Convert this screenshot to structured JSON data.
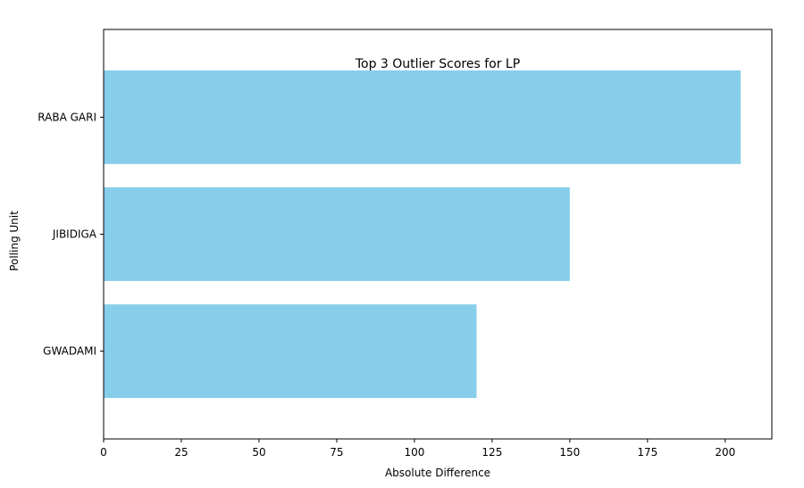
{
  "chart_data": {
    "type": "bar",
    "orientation": "horizontal",
    "title": "Top 3 Outlier Scores for LP",
    "xlabel": "Absolute Difference",
    "ylabel": "Polling Unit",
    "categories": [
      "RABA GARI",
      "JIBIDIGA",
      "GWADAMI"
    ],
    "values": [
      205,
      150,
      120
    ],
    "xlim": [
      0,
      215
    ],
    "xticks": [
      0,
      25,
      50,
      75,
      100,
      125,
      150,
      175,
      200
    ],
    "bar_color": "#87CEEB",
    "grid": false,
    "legend": "none"
  }
}
